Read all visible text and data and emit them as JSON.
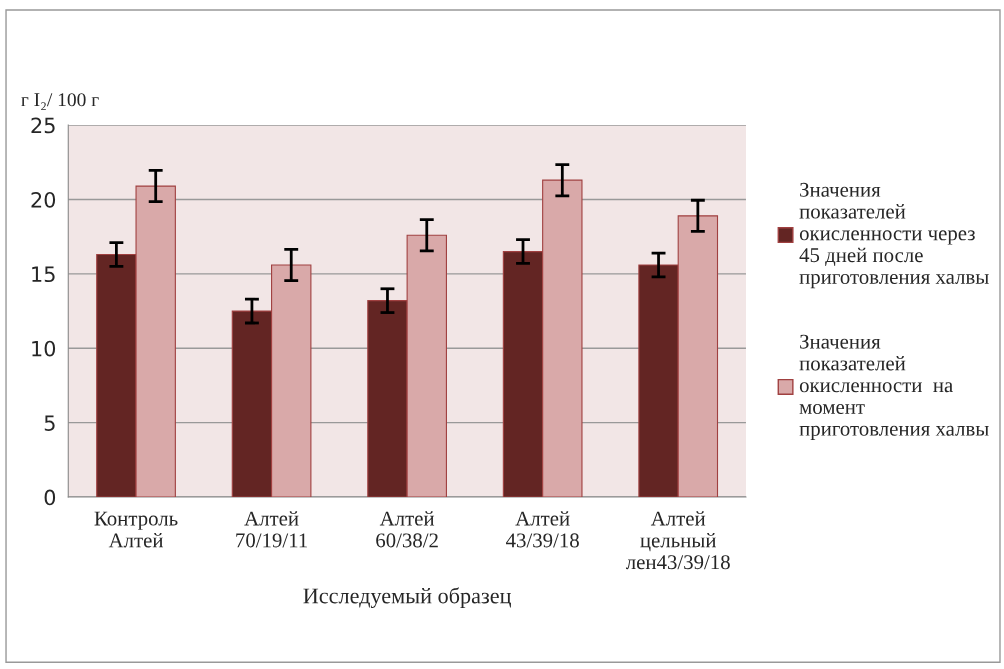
{
  "chart_data": {
    "type": "bar",
    "xlabel": "Исследуемый образец",
    "ylabel": "г I₂/ 100 г",
    "categories": [
      "Контроль\nАлтей",
      "Алтей\n70/19/11",
      "Алтей\n60/38/2",
      "Алтей\n43/39/18",
      "Алтей\nцельный\nлен43/39/18"
    ],
    "series": [
      {
        "name": "Значения показателей окисленности через 45 дней после приготовления халвы",
        "color": "#632523",
        "values": [
          16.3,
          12.5,
          13.2,
          16.5,
          15.6
        ],
        "errors": [
          0.8,
          0.8,
          0.8,
          0.8,
          0.8
        ]
      },
      {
        "name": "Значения показателей окисленности  на момент приготовления халвы",
        "color": "#d9a9a9",
        "values": [
          20.9,
          15.6,
          17.6,
          21.3,
          18.9
        ],
        "errors": [
          1.05,
          1.05,
          1.05,
          1.05,
          1.05
        ]
      }
    ],
    "ylim": [
      0,
      25
    ],
    "yticks": [
      0,
      5,
      10,
      15,
      20,
      25
    ],
    "grid": "y",
    "legend": "right"
  }
}
